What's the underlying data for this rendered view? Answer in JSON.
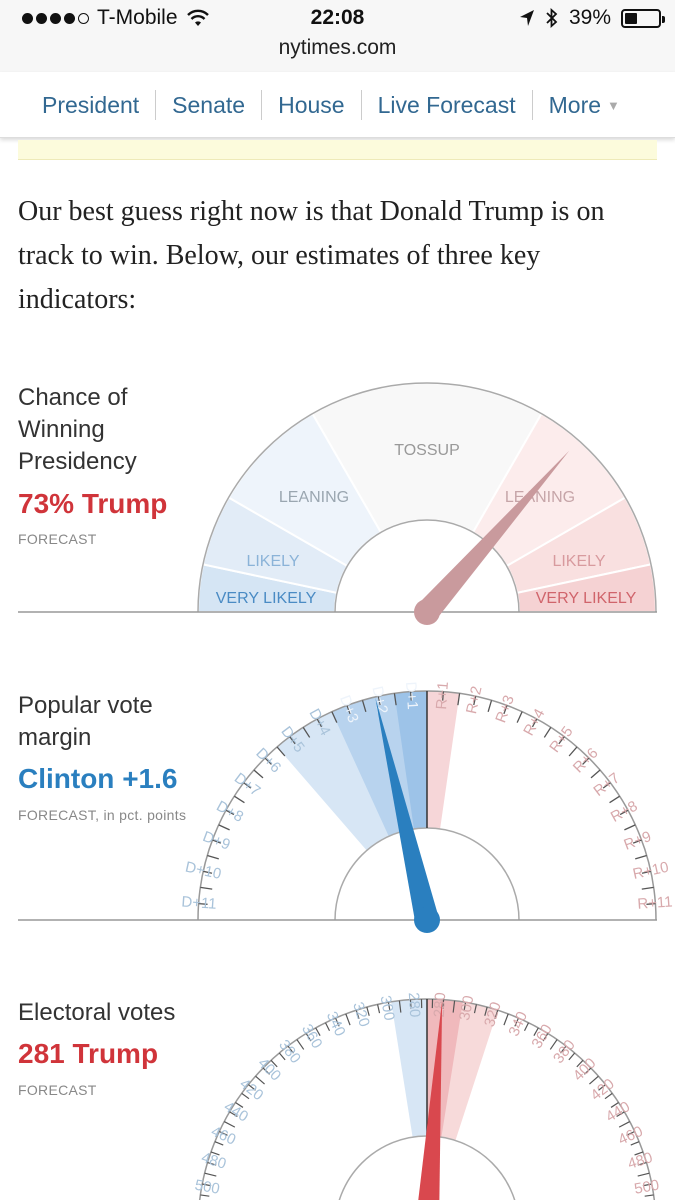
{
  "status": {
    "carrier": "T-Mobile",
    "time": "22:08",
    "battery": "39%",
    "battery_level": 0.39,
    "url": "nytimes.com",
    "icons": [
      "wifi-icon",
      "location-arrow-icon",
      "bluetooth-icon",
      "battery-icon"
    ]
  },
  "nav": {
    "items": [
      {
        "label": "President"
      },
      {
        "label": "Senate"
      },
      {
        "label": "House"
      },
      {
        "label": "Live Forecast"
      },
      {
        "label": "More"
      }
    ]
  },
  "intro": "Our best guess right now is that Donald Trump is on track to win. Below, our estimates of three key indicators:",
  "gauges": {
    "chance": {
      "label": [
        "Chance of",
        "Winning",
        "Presidency"
      ],
      "value": "73% Trump",
      "sub": "FORECAST",
      "zones": [
        "VERY LIKELY",
        "LIKELY",
        "LEANING",
        "TOSSUP",
        "LEANING",
        "LIKELY",
        "VERY LIKELY"
      ]
    },
    "popular": {
      "label": [
        "Popular vote",
        "margin"
      ],
      "value": "Clinton +1.6",
      "sub": "FORECAST, in pct. points",
      "left_ticks": [
        "D+1",
        "D+2",
        "D+3",
        "D+4",
        "D+5",
        "D+6",
        "D+7",
        "D+8",
        "D+9",
        "D+10",
        "D+11"
      ],
      "right_ticks": [
        "R+1",
        "R+2",
        "R+3",
        "R+4",
        "R+5",
        "R+6",
        "R+7",
        "R+8",
        "R+9",
        "R+10",
        "R+11"
      ]
    },
    "electoral": {
      "label": [
        "Electoral votes"
      ],
      "value": "281 Trump",
      "sub": "FORECAST",
      "left_ticks": [
        "280",
        "300",
        "320",
        "340",
        "360",
        "380",
        "400",
        "420",
        "440",
        "460",
        "480",
        "500"
      ],
      "right_ticks": [
        "280",
        "300",
        "320",
        "340",
        "360",
        "380",
        "400",
        "420",
        "440",
        "460",
        "480",
        "500"
      ]
    }
  },
  "colors": {
    "dem": "#2a7fbf",
    "rep": "#d0343a",
    "link": "#326891"
  },
  "chart_data": [
    {
      "type": "gauge",
      "title": "Chance of Winning Presidency",
      "value_percent_trump": 73,
      "zones": [
        "VERY LIKELY",
        "LIKELY",
        "LEANING",
        "TOSSUP",
        "LEANING",
        "LIKELY",
        "VERY LIKELY"
      ]
    },
    {
      "type": "gauge",
      "title": "Popular vote margin",
      "value": -1.6,
      "range": [
        -11,
        11
      ]
    },
    {
      "type": "gauge",
      "title": "Electoral votes",
      "value_trump": 281
    }
  ]
}
